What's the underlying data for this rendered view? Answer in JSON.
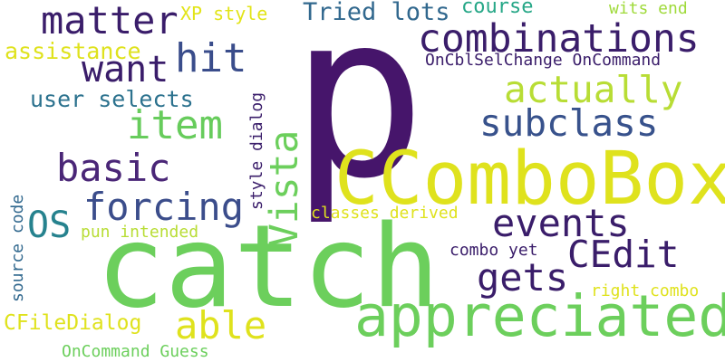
{
  "words": {
    "p": {
      "text": "p",
      "color": "#46156b"
    },
    "catch": {
      "text": "catch",
      "color": "#6ccf5c"
    },
    "ccombobox": {
      "text": "CComboBox",
      "color": "#dfe21d"
    },
    "appreciated": {
      "text": "appreciated",
      "color": "#6ccf5c"
    },
    "combinations": {
      "text": "combinations",
      "color": "#3a1d6a"
    },
    "matter": {
      "text": "matter",
      "color": "#3a1d6a"
    },
    "want": {
      "text": "want",
      "color": "#3a1d6a"
    },
    "hit": {
      "text": "hit",
      "color": "#3a4d8b"
    },
    "actually": {
      "text": "actually",
      "color": "#b8dd35"
    },
    "subclass": {
      "text": "subclass",
      "color": "#38528c"
    },
    "item": {
      "text": "item",
      "color": "#67cc5c"
    },
    "basic": {
      "text": "basic",
      "color": "#4a2677"
    },
    "forcing": {
      "text": "forcing",
      "color": "#3b4d8b"
    },
    "os": {
      "text": "OS",
      "color": "#26828e"
    },
    "vista": {
      "text": "Vista",
      "color": "#6ccf5c"
    },
    "events": {
      "text": "events",
      "color": "#3a1d6a"
    },
    "cedit": {
      "text": "CEdit",
      "color": "#3a1d6a"
    },
    "gets": {
      "text": "gets",
      "color": "#3a1d6a"
    },
    "able": {
      "text": "able",
      "color": "#dfe21d"
    },
    "tried_lots": {
      "text": "Tried lots",
      "color": "#31688e"
    },
    "course": {
      "text": "course",
      "color": "#26a787"
    },
    "xp_style": {
      "text": "XP style",
      "color": "#e2e418"
    },
    "wits_end": {
      "text": "wits end",
      "color": "#9fda3a"
    },
    "assistance": {
      "text": "assistance",
      "color": "#dfe21d"
    },
    "oncbl": {
      "text": "OnCblSelChange OnCommand",
      "color": "#3a1d6a"
    },
    "user_selects": {
      "text": "user selects",
      "color": "#2c728e"
    },
    "style_dialog": {
      "text": "style dialog",
      "color": "#3a1d6a"
    },
    "classes_derived": {
      "text": "classes derived",
      "color": "#dfe21d"
    },
    "source_code": {
      "text": "source code",
      "color": "#31688e"
    },
    "pun_intended": {
      "text": "pun intended",
      "color": "#b8dd35"
    },
    "combo_yet": {
      "text": "combo yet",
      "color": "#3a1d6a"
    },
    "right_combo": {
      "text": "right combo",
      "color": "#dfe21d"
    },
    "cfiledialog": {
      "text": "CFileDialog",
      "color": "#dfe21d"
    },
    "oncommand_guess": {
      "text": "OnCommand Guess",
      "color": "#6ccf5c"
    }
  }
}
